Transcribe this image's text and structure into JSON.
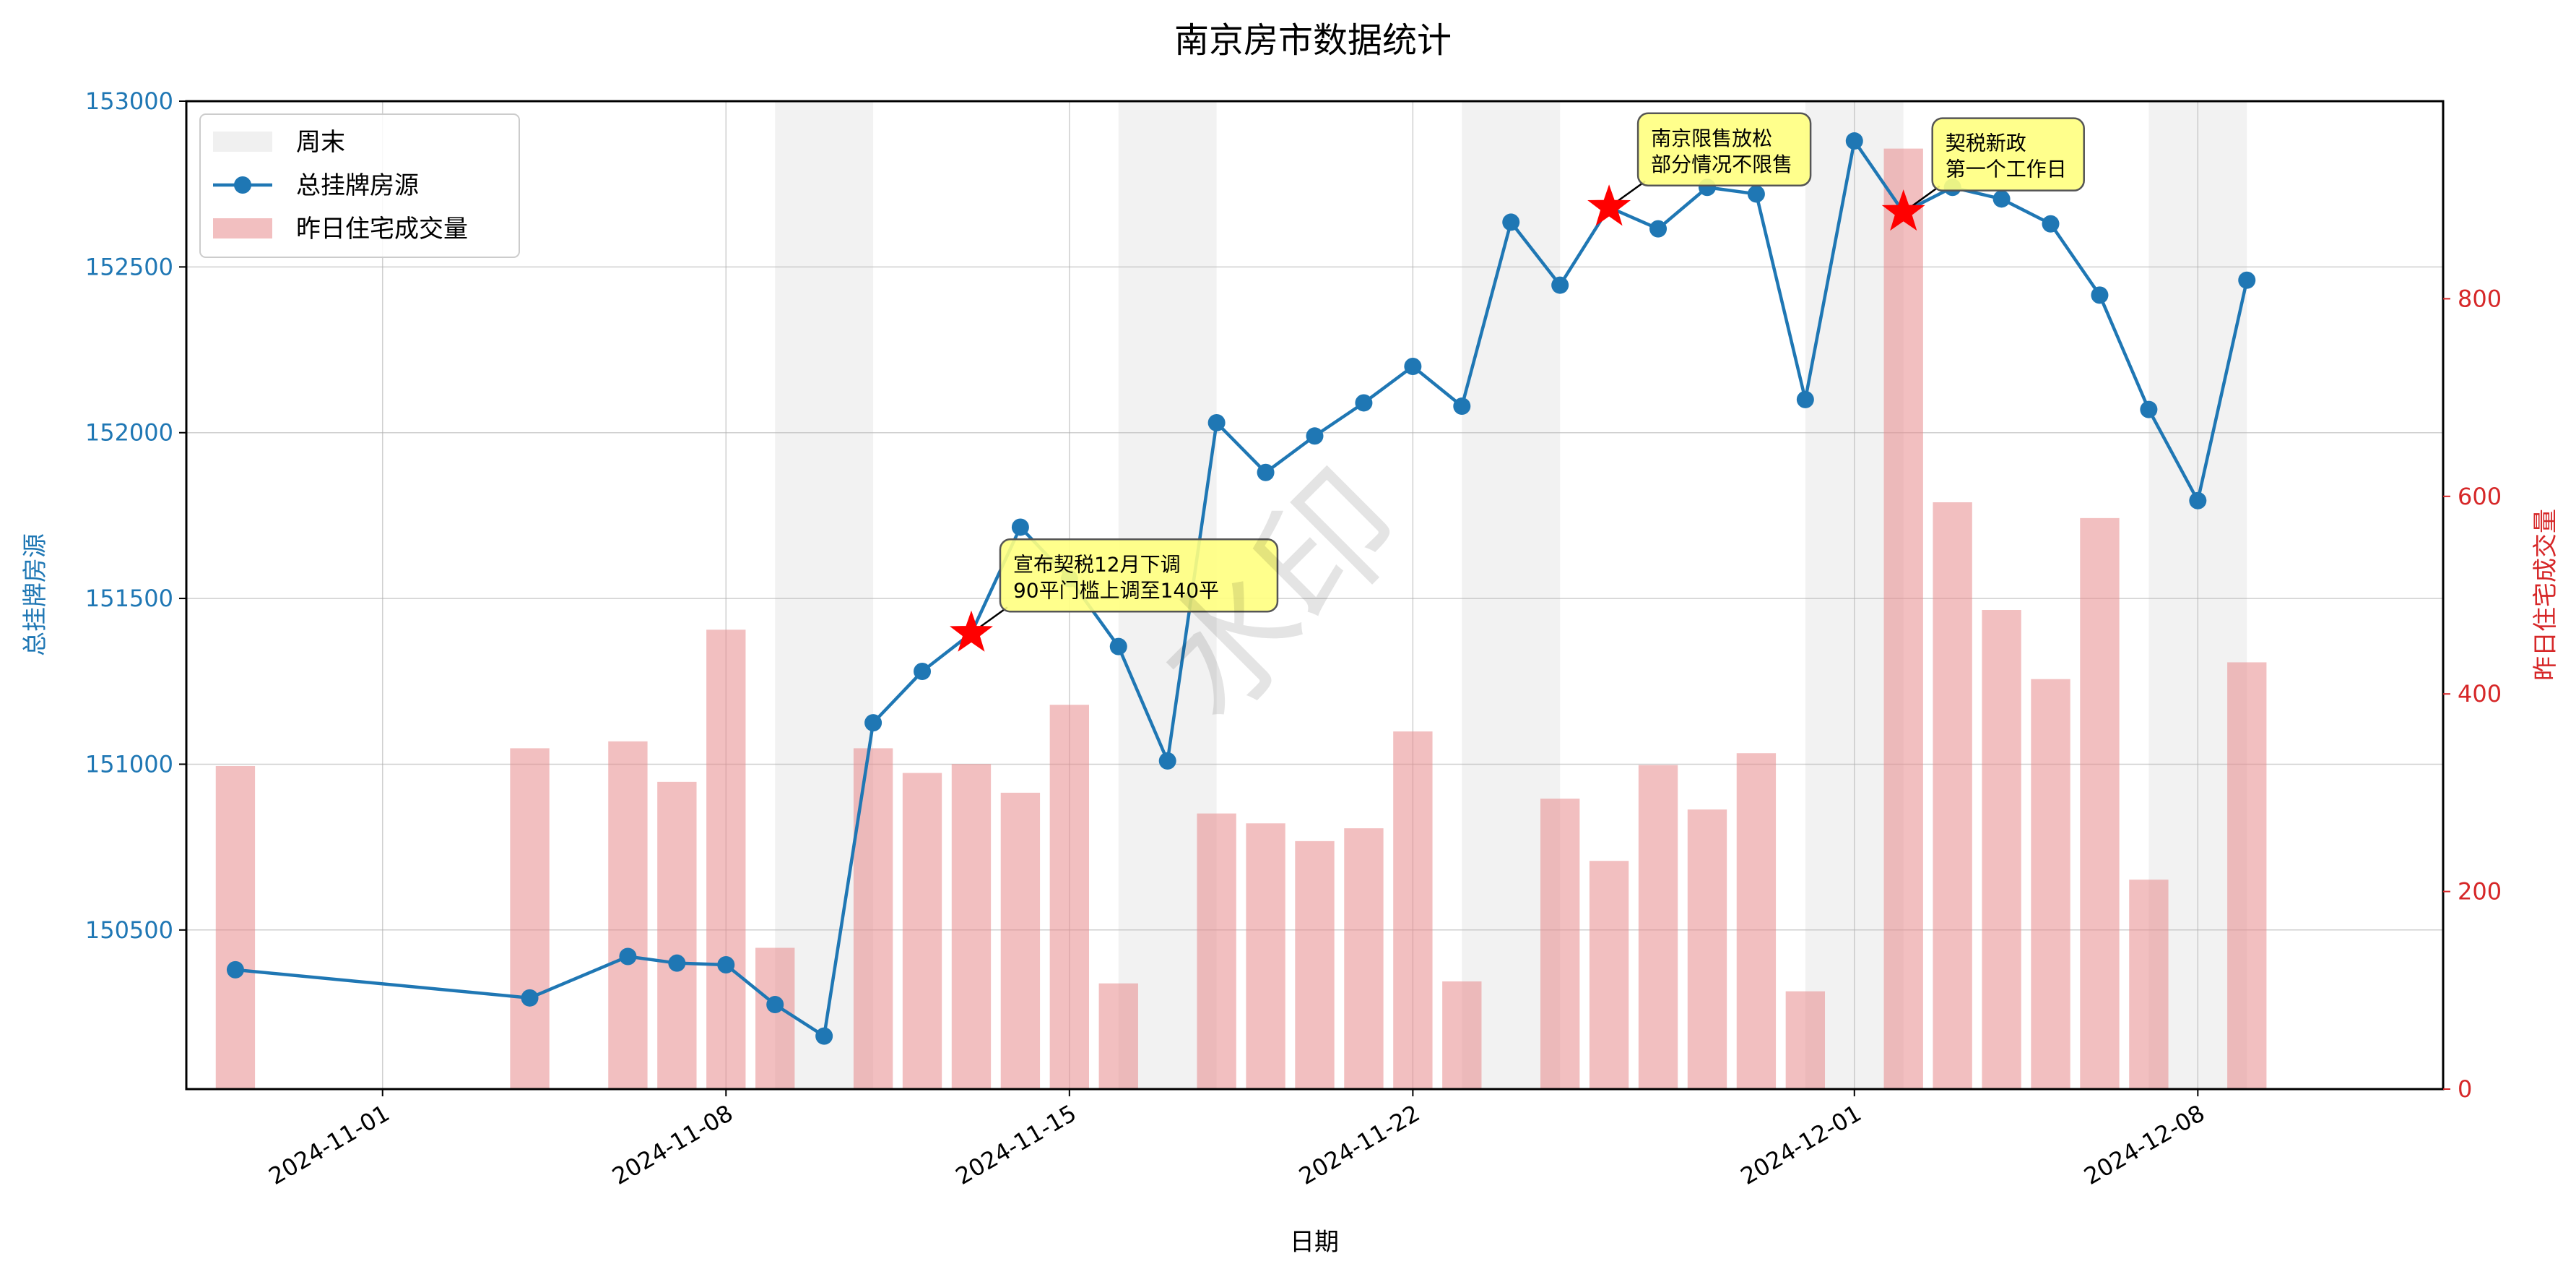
{
  "chart_data": {
    "type": "bar+line",
    "title": "南京房市数据统计",
    "xlabel": "日期",
    "ylabel_left": "总挂牌房源",
    "ylabel_right": "昨日住宅成交量",
    "x_range": [
      "2024-10-28",
      "2024-12-13"
    ],
    "ylim_left": [
      150020,
      153000
    ],
    "ylim_right": [
      0,
      1000
    ],
    "yticks_left": [
      "150500",
      "151000",
      "151500",
      "152000",
      "152500",
      "153000"
    ],
    "yticks_right": [
      "0",
      "200",
      "400",
      "600",
      "800"
    ],
    "xticks": [
      "2024-11-01",
      "2024-11-08",
      "2024-11-15",
      "2024-11-22",
      "2024-12-01",
      "2024-12-08"
    ],
    "grid": true,
    "legend_position": "top-left",
    "legend": [
      {
        "label": "周末",
        "kind": "weekend"
      },
      {
        "label": "总挂牌房源",
        "kind": "line"
      },
      {
        "label": "昨日住宅成交量",
        "kind": "bar"
      }
    ],
    "weekend_ranges": [
      [
        "2024-11-09",
        "2024-11-11"
      ],
      [
        "2024-11-16",
        "2024-11-18"
      ],
      [
        "2024-11-23",
        "2024-11-25"
      ],
      [
        "2024-11-30",
        "2024-12-02"
      ],
      [
        "2024-12-07",
        "2024-12-09"
      ]
    ],
    "series_line": {
      "name": "总挂牌房源",
      "color": "#1f77b4",
      "points": [
        {
          "x": "2024-10-29",
          "y": 150380
        },
        {
          "x": "2024-11-04",
          "y": 150295
        },
        {
          "x": "2024-11-06",
          "y": 150420
        },
        {
          "x": "2024-11-07",
          "y": 150400
        },
        {
          "x": "2024-11-08",
          "y": 150395
        },
        {
          "x": "2024-11-09",
          "y": 150275
        },
        {
          "x": "2024-11-10",
          "y": 150180
        },
        {
          "x": "2024-11-11",
          "y": 151125
        },
        {
          "x": "2024-11-12",
          "y": 151280
        },
        {
          "x": "2024-11-13",
          "y": 151395
        },
        {
          "x": "2024-11-14",
          "y": 151715
        },
        {
          "x": "2024-11-15",
          "y": 151560
        },
        {
          "x": "2024-11-16",
          "y": 151355
        },
        {
          "x": "2024-11-17",
          "y": 151010
        },
        {
          "x": "2024-11-18",
          "y": 152030
        },
        {
          "x": "2024-11-19",
          "y": 151880
        },
        {
          "x": "2024-11-20",
          "y": 151990
        },
        {
          "x": "2024-11-21",
          "y": 152090
        },
        {
          "x": "2024-11-22",
          "y": 152200
        },
        {
          "x": "2024-11-23",
          "y": 152080
        },
        {
          "x": "2024-11-24",
          "y": 152635
        },
        {
          "x": "2024-11-25",
          "y": 152445
        },
        {
          "x": "2024-11-26",
          "y": 152680
        },
        {
          "x": "2024-11-27",
          "y": 152615
        },
        {
          "x": "2024-11-28",
          "y": 152740
        },
        {
          "x": "2024-11-29",
          "y": 152720
        },
        {
          "x": "2024-11-30",
          "y": 152100
        },
        {
          "x": "2024-12-01",
          "y": 152880
        },
        {
          "x": "2024-12-02",
          "y": 152665
        },
        {
          "x": "2024-12-03",
          "y": 152740
        },
        {
          "x": "2024-12-04",
          "y": 152705
        },
        {
          "x": "2024-12-05",
          "y": 152630
        },
        {
          "x": "2024-12-06",
          "y": 152415
        },
        {
          "x": "2024-12-07",
          "y": 152070
        },
        {
          "x": "2024-12-08",
          "y": 151795
        },
        {
          "x": "2024-12-09",
          "y": 152460
        }
      ]
    },
    "series_bar": {
      "name": "昨日住宅成交量",
      "color": "#e88a8c",
      "points": [
        {
          "x": "2024-10-29",
          "y": 327
        },
        {
          "x": "2024-11-04",
          "y": 345
        },
        {
          "x": "2024-11-06",
          "y": 352
        },
        {
          "x": "2024-11-07",
          "y": 311
        },
        {
          "x": "2024-11-08",
          "y": 465
        },
        {
          "x": "2024-11-09",
          "y": 143
        },
        {
          "x": "2024-11-11",
          "y": 345
        },
        {
          "x": "2024-11-12",
          "y": 320
        },
        {
          "x": "2024-11-13",
          "y": 329
        },
        {
          "x": "2024-11-14",
          "y": 300
        },
        {
          "x": "2024-11-15",
          "y": 389
        },
        {
          "x": "2024-11-16",
          "y": 107
        },
        {
          "x": "2024-11-18",
          "y": 279
        },
        {
          "x": "2024-11-19",
          "y": 269
        },
        {
          "x": "2024-11-20",
          "y": 251
        },
        {
          "x": "2024-11-21",
          "y": 264
        },
        {
          "x": "2024-11-22",
          "y": 362
        },
        {
          "x": "2024-11-23",
          "y": 109
        },
        {
          "x": "2024-11-25",
          "y": 294
        },
        {
          "x": "2024-11-26",
          "y": 231
        },
        {
          "x": "2024-11-27",
          "y": 328
        },
        {
          "x": "2024-11-28",
          "y": 283
        },
        {
          "x": "2024-11-29",
          "y": 340
        },
        {
          "x": "2024-11-30",
          "y": 99
        },
        {
          "x": "2024-12-02",
          "y": 952
        },
        {
          "x": "2024-12-03",
          "y": 594
        },
        {
          "x": "2024-12-04",
          "y": 485
        },
        {
          "x": "2024-12-05",
          "y": 415
        },
        {
          "x": "2024-12-06",
          "y": 578
        },
        {
          "x": "2024-12-07",
          "y": 212
        },
        {
          "x": "2024-12-09",
          "y": 432
        }
      ]
    },
    "annotations": [
      {
        "x": "2024-11-13",
        "y": 151395,
        "lines": [
          "宣布契税12月下调",
          "90平门槛上调至140平"
        ]
      },
      {
        "x": "2024-11-26",
        "y": 152680,
        "lines": [
          "南京限售放松",
          "部分情况不限售"
        ]
      },
      {
        "x": "2024-12-02",
        "y": 152665,
        "lines": [
          "契税新政",
          "第一个工作日"
        ]
      }
    ],
    "watermark": "水印",
    "colors": {
      "line": "#1f77b4",
      "bar": "#e88a8c",
      "right_axis": "#d62728",
      "weekend": "#808080",
      "annot_box": "#ffff80",
      "star": "#ff0000"
    }
  }
}
